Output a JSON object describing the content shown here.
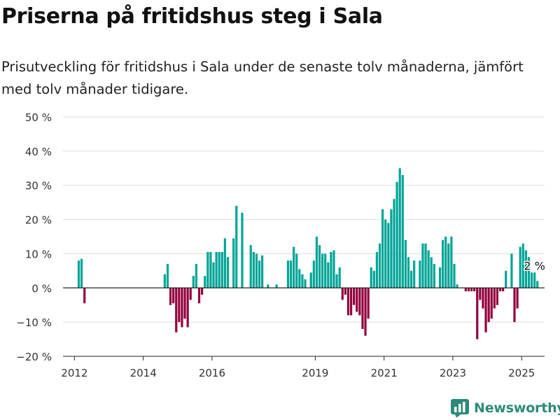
{
  "title": "Priserna på fritidshus steg i Sala",
  "subtitle": "Prisutveckling för fritidshus i Sala under de senaste tolv månaderna, jämfört med tolv månader tidigare.",
  "brand": "Newsworthy",
  "colors": {
    "positive": "#00a597",
    "negative": "#92003d",
    "grid": "#dddddd",
    "brand": "#2c8a7a"
  },
  "chart_data": {
    "type": "bar",
    "unit": "%",
    "ylim": [
      -20,
      50
    ],
    "yticks": [
      -20,
      -10,
      0,
      10,
      20,
      30,
      40,
      50
    ],
    "ytick_labels": [
      "−20 %",
      "−10 %",
      "0 %",
      "10 %",
      "20 %",
      "30 %",
      "40 %",
      "50 %"
    ],
    "xticks": [
      {
        "label": "2012",
        "date": "2012-01"
      },
      {
        "label": "2014",
        "date": "2014-01"
      },
      {
        "label": "2016",
        "date": "2016-01"
      },
      {
        "label": "2019",
        "date": "2019-01"
      },
      {
        "label": "2021",
        "date": "2021-01"
      },
      {
        "label": "2023",
        "date": "2023-01"
      },
      {
        "label": "2025",
        "date": "2025-01"
      }
    ],
    "xlim": [
      "2011-09",
      "2025-09"
    ],
    "grid": true,
    "annotation": {
      "text": "2 %",
      "date": "2025-02",
      "value": 2
    },
    "series": [
      {
        "points": [
          {
            "date": "2012-02",
            "value": 8
          },
          {
            "date": "2012-03",
            "value": 8.5
          },
          {
            "date": "2012-04",
            "value": -4.5
          },
          {
            "date": "2014-08",
            "value": 4
          },
          {
            "date": "2014-09",
            "value": 7
          },
          {
            "date": "2014-10",
            "value": -5
          },
          {
            "date": "2014-11",
            "value": -4.5
          },
          {
            "date": "2014-12",
            "value": -13
          },
          {
            "date": "2015-01",
            "value": -10
          },
          {
            "date": "2015-02",
            "value": -11.5
          },
          {
            "date": "2015-03",
            "value": -9
          },
          {
            "date": "2015-04",
            "value": -11.5
          },
          {
            "date": "2015-05",
            "value": -3.5
          },
          {
            "date": "2015-06",
            "value": 3.5
          },
          {
            "date": "2015-07",
            "value": 7
          },
          {
            "date": "2015-08",
            "value": -4.5
          },
          {
            "date": "2015-09",
            "value": -2
          },
          {
            "date": "2015-10",
            "value": 3.5
          },
          {
            "date": "2015-11",
            "value": 10.5
          },
          {
            "date": "2015-12",
            "value": 10.5
          },
          {
            "date": "2016-01",
            "value": 7.5
          },
          {
            "date": "2016-02",
            "value": 10.5
          },
          {
            "date": "2016-03",
            "value": 10.5
          },
          {
            "date": "2016-04",
            "value": 10.5
          },
          {
            "date": "2016-05",
            "value": 14.5
          },
          {
            "date": "2016-06",
            "value": 9
          },
          {
            "date": "2016-08",
            "value": 14.5
          },
          {
            "date": "2016-09",
            "value": 24
          },
          {
            "date": "2016-11",
            "value": 22
          },
          {
            "date": "2017-02",
            "value": 12.5
          },
          {
            "date": "2017-03",
            "value": 10.5
          },
          {
            "date": "2017-04",
            "value": 10
          },
          {
            "date": "2017-05",
            "value": 8
          },
          {
            "date": "2017-06",
            "value": 9.5
          },
          {
            "date": "2017-08",
            "value": 1
          },
          {
            "date": "2017-11",
            "value": 1
          },
          {
            "date": "2018-03",
            "value": 8
          },
          {
            "date": "2018-04",
            "value": 8
          },
          {
            "date": "2018-05",
            "value": 12
          },
          {
            "date": "2018-06",
            "value": 10
          },
          {
            "date": "2018-07",
            "value": 5.5
          },
          {
            "date": "2018-08",
            "value": 4
          },
          {
            "date": "2018-09",
            "value": 2.5
          },
          {
            "date": "2018-11",
            "value": 4.5
          },
          {
            "date": "2018-12",
            "value": 8
          },
          {
            "date": "2019-01",
            "value": 15
          },
          {
            "date": "2019-02",
            "value": 12.5
          },
          {
            "date": "2019-03",
            "value": 10
          },
          {
            "date": "2019-04",
            "value": 10
          },
          {
            "date": "2019-05",
            "value": 7.5
          },
          {
            "date": "2019-06",
            "value": 10.5
          },
          {
            "date": "2019-07",
            "value": 11
          },
          {
            "date": "2019-08",
            "value": 4
          },
          {
            "date": "2019-09",
            "value": 6
          },
          {
            "date": "2019-10",
            "value": -3.5
          },
          {
            "date": "2019-11",
            "value": -2
          },
          {
            "date": "2019-12",
            "value": -8
          },
          {
            "date": "2020-01",
            "value": -8
          },
          {
            "date": "2020-02",
            "value": -5
          },
          {
            "date": "2020-03",
            "value": -7
          },
          {
            "date": "2020-04",
            "value": -8
          },
          {
            "date": "2020-05",
            "value": -12
          },
          {
            "date": "2020-06",
            "value": -14
          },
          {
            "date": "2020-07",
            "value": -9
          },
          {
            "date": "2020-08",
            "value": 6
          },
          {
            "date": "2020-09",
            "value": 5
          },
          {
            "date": "2020-10",
            "value": 10.5
          },
          {
            "date": "2020-11",
            "value": 13
          },
          {
            "date": "2020-12",
            "value": 23
          },
          {
            "date": "2021-01",
            "value": 20
          },
          {
            "date": "2021-02",
            "value": 19
          },
          {
            "date": "2021-03",
            "value": 23
          },
          {
            "date": "2021-04",
            "value": 26
          },
          {
            "date": "2021-05",
            "value": 31
          },
          {
            "date": "2021-06",
            "value": 35
          },
          {
            "date": "2021-07",
            "value": 33
          },
          {
            "date": "2021-08",
            "value": 14
          },
          {
            "date": "2021-09",
            "value": 9
          },
          {
            "date": "2021-10",
            "value": 5
          },
          {
            "date": "2021-11",
            "value": 8
          },
          {
            "date": "2022-01",
            "value": 8
          },
          {
            "date": "2022-02",
            "value": 13
          },
          {
            "date": "2022-03",
            "value": 13
          },
          {
            "date": "2022-04",
            "value": 11
          },
          {
            "date": "2022-05",
            "value": 9
          },
          {
            "date": "2022-06",
            "value": 7
          },
          {
            "date": "2022-08",
            "value": 6
          },
          {
            "date": "2022-09",
            "value": 14
          },
          {
            "date": "2022-10",
            "value": 15
          },
          {
            "date": "2022-11",
            "value": 13
          },
          {
            "date": "2022-12",
            "value": 15
          },
          {
            "date": "2023-01",
            "value": 7
          },
          {
            "date": "2023-02",
            "value": 1
          },
          {
            "date": "2023-05",
            "value": -1
          },
          {
            "date": "2023-06",
            "value": -1
          },
          {
            "date": "2023-07",
            "value": -1
          },
          {
            "date": "2023-08",
            "value": -1
          },
          {
            "date": "2023-09",
            "value": -15
          },
          {
            "date": "2023-10",
            "value": -3.5
          },
          {
            "date": "2023-11",
            "value": -6
          },
          {
            "date": "2023-12",
            "value": -13
          },
          {
            "date": "2024-01",
            "value": -10
          },
          {
            "date": "2024-02",
            "value": -9
          },
          {
            "date": "2024-03",
            "value": -6
          },
          {
            "date": "2024-04",
            "value": -5
          },
          {
            "date": "2024-05",
            "value": -1
          },
          {
            "date": "2024-06",
            "value": -1
          },
          {
            "date": "2024-07",
            "value": 5
          },
          {
            "date": "2024-09",
            "value": 10
          },
          {
            "date": "2024-10",
            "value": -10
          },
          {
            "date": "2024-11",
            "value": -6
          },
          {
            "date": "2024-12",
            "value": 12
          },
          {
            "date": "2025-01",
            "value": 13
          },
          {
            "date": "2025-02",
            "value": 11
          },
          {
            "date": "2025-03",
            "value": 9
          },
          {
            "date": "2025-04",
            "value": 4.5
          },
          {
            "date": "2025-05",
            "value": 4.5
          },
          {
            "date": "2025-06",
            "value": 2
          }
        ]
      }
    ]
  }
}
